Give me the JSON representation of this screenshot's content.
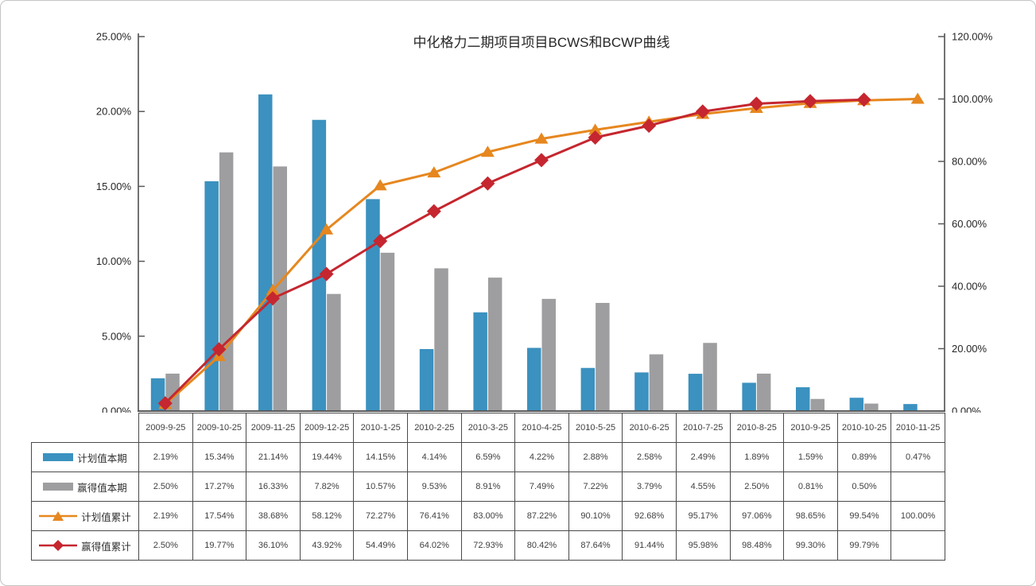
{
  "chart_data": {
    "type": "combo: bar + line (dual percent axes)",
    "title": "中化格力二期项目项目BCWS和BCWP曲线",
    "grid": false,
    "legend_position": "table-left-column",
    "categories": [
      "2009-9-25",
      "2009-10-25",
      "2009-11-25",
      "2009-12-25",
      "2010-1-25",
      "2010-2-25",
      "2010-3-25",
      "2010-4-25",
      "2010-5-25",
      "2010-6-25",
      "2010-7-25",
      "2010-8-25",
      "2010-9-25",
      "2010-10-25",
      "2010-11-25"
    ],
    "left_axis": {
      "min": 0,
      "max": 25,
      "step": 5,
      "tick_labels": [
        "0.00%",
        "5.00%",
        "10.00%",
        "15.00%",
        "20.00%",
        "25.00%"
      ]
    },
    "right_axis": {
      "min": 0,
      "max": 120,
      "step": 20,
      "tick_labels": [
        "0.00%",
        "20.00%",
        "40.00%",
        "60.00%",
        "80.00%",
        "100.00%",
        "120.00%"
      ]
    },
    "series": [
      {
        "name": "计划值本期",
        "type": "bar",
        "axis": "left",
        "marker": "none",
        "color": "#3B91BF",
        "values": [
          2.19,
          15.34,
          21.14,
          19.44,
          14.15,
          4.14,
          6.59,
          4.22,
          2.88,
          2.58,
          2.49,
          1.89,
          1.59,
          0.89,
          0.47
        ]
      },
      {
        "name": "赢得值本期",
        "type": "bar",
        "axis": "left",
        "marker": "none",
        "color": "#9E9EA0",
        "values": [
          2.5,
          17.27,
          16.33,
          7.82,
          10.57,
          9.53,
          8.91,
          7.49,
          7.22,
          3.79,
          4.55,
          2.5,
          0.81,
          0.5,
          null
        ]
      },
      {
        "name": "计划值累计",
        "type": "line",
        "axis": "right",
        "marker": "triangle",
        "color": "#E6871F",
        "values": [
          2.19,
          17.54,
          38.68,
          58.12,
          72.27,
          76.41,
          83.0,
          87.22,
          90.1,
          92.68,
          95.17,
          97.06,
          98.65,
          99.54,
          100.0
        ]
      },
      {
        "name": "赢得值累计",
        "type": "line",
        "axis": "right",
        "marker": "diamond",
        "color": "#C5262F",
        "values": [
          2.5,
          19.77,
          36.1,
          43.92,
          54.49,
          64.02,
          72.93,
          80.42,
          87.64,
          91.44,
          95.98,
          98.48,
          99.3,
          99.79,
          null
        ]
      }
    ],
    "colors": {
      "axis_line": "#595959",
      "table_border": "#4a4a4a",
      "text": "#262626"
    }
  }
}
